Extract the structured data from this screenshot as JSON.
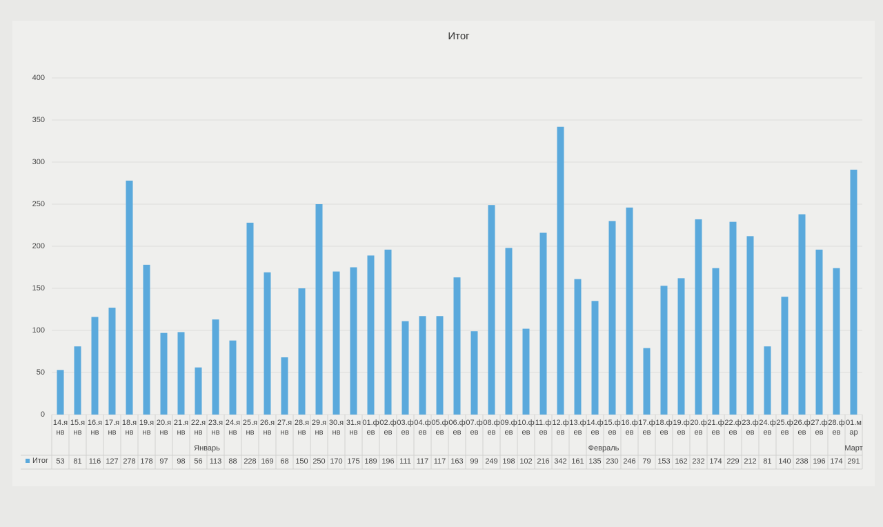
{
  "chart_data": {
    "type": "bar",
    "title": "Итог",
    "categories": [
      "14.янв",
      "15.янв",
      "16.янв",
      "17.янв",
      "18.янв",
      "19.янв",
      "20.янв",
      "21.янв",
      "22.янв",
      "23.янв",
      "24.янв",
      "25.янв",
      "26.янв",
      "27.янв",
      "28.янв",
      "29.янв",
      "30.янв",
      "31.янв",
      "01.фев",
      "02.фев",
      "03.фев",
      "04.фев",
      "05.фев",
      "06.фев",
      "07.фев",
      "08.фев",
      "09.фев",
      "10.фев",
      "11.фев",
      "12.фев",
      "13.фев",
      "14.фев",
      "15.фев",
      "16.фев",
      "17.фев",
      "18.фев",
      "19.фев",
      "20.фев",
      "21.фев",
      "22.фев",
      "23.фев",
      "24.фев",
      "25.фев",
      "26.фев",
      "27.фев",
      "28.фев",
      "01.мар"
    ],
    "groups": [
      "Январь",
      "Февраль",
      "Март"
    ],
    "series": [
      {
        "name": "Итог",
        "color": "#5aa9dc",
        "values": [
          53,
          81,
          116,
          127,
          278,
          178,
          97,
          98,
          56,
          113,
          88,
          228,
          169,
          68,
          150,
          250,
          170,
          175,
          189,
          196,
          111,
          117,
          117,
          163,
          99,
          249,
          198,
          102,
          216,
          342,
          161,
          135,
          230,
          246,
          79,
          153,
          162,
          232,
          174,
          229,
          212,
          81,
          140,
          238,
          196,
          174,
          291
        ]
      }
    ],
    "ylim": [
      0,
      400
    ],
    "yticks": [
      0,
      50,
      100,
      150,
      200,
      250,
      300,
      350,
      400
    ],
    "grid": true
  }
}
